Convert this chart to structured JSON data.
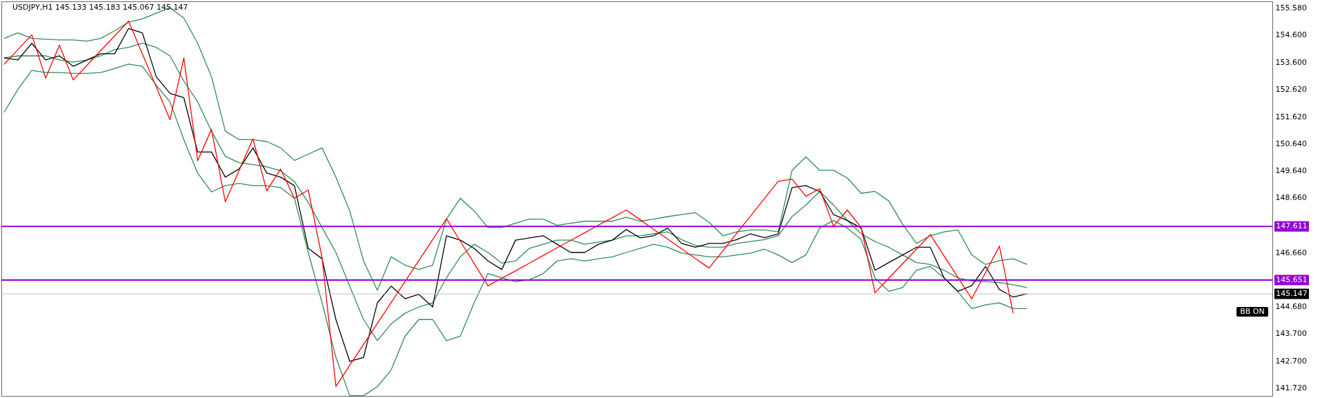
{
  "chart_data": {
    "type": "line",
    "title": "USDJPY,H1  145.133 145.183 145.067 145.147",
    "categories": [
      null,
      null,
      null,
      null,
      null,
      null,
      null,
      null,
      null,
      null,
      null,
      null,
      null,
      null,
      null,
      null,
      null,
      null,
      null,
      null,
      null,
      null,
      null,
      null,
      null,
      null,
      null,
      null,
      null,
      null,
      null,
      null,
      null,
      null,
      null,
      null,
      null,
      null,
      null,
      null,
      null,
      null,
      null,
      null,
      null,
      null,
      null,
      null,
      null,
      null,
      null,
      null,
      null,
      null,
      null,
      null,
      null,
      null,
      null,
      null,
      null,
      null,
      null,
      null,
      null,
      null,
      null,
      null,
      null,
      null,
      null,
      null,
      null,
      null,
      null
    ],
    "series": [
      {
        "color": "#2e8b57",
        "values": [
          154.48,
          154.68,
          154.48,
          154.45,
          154.42,
          154.42,
          154.38,
          154.48,
          154.76,
          155.07,
          155.19,
          155.4,
          155.6,
          155.22,
          154.3,
          153.08,
          151.09,
          150.78,
          150.78,
          150.71,
          150.48,
          150.02,
          150.25,
          150.48,
          149.41,
          148.18,
          146.35,
          145.28,
          146.5,
          146.2,
          146.04,
          146.2,
          147.88,
          148.64,
          148.18,
          147.57,
          147.57,
          147.73,
          147.88,
          147.88,
          147.65,
          147.73,
          147.8,
          147.8,
          147.8,
          147.95,
          147.8,
          147.88,
          147.97,
          148.04,
          148.11,
          147.76,
          147.27,
          147.41,
          147.48,
          147.48,
          147.41,
          149.66,
          150.15,
          149.66,
          149.66,
          149.38,
          148.82,
          148.89,
          148.54,
          147.69,
          146.99,
          147.27,
          147.41,
          147.48,
          146.57,
          146.22,
          146.36,
          146.43,
          146.22
        ]
      },
      {
        "color": "#2e8b57",
        "values": [
          153.77,
          153.84,
          153.84,
          153.84,
          153.69,
          153.61,
          153.69,
          153.84,
          154.07,
          154.15,
          154.3,
          154.15,
          153.84,
          152.92,
          152.16,
          151.09,
          150.17,
          149.94,
          149.87,
          149.79,
          149.64,
          149.25,
          148.49,
          147.57,
          146.66,
          145.43,
          144.21,
          143.44,
          144.05,
          144.44,
          144.67,
          144.82,
          145.74,
          146.5,
          146.96,
          146.66,
          146.27,
          146.35,
          146.81,
          146.96,
          147.11,
          147.11,
          146.96,
          147.04,
          147.11,
          147.27,
          147.27,
          147.34,
          147.41,
          147.13,
          146.92,
          146.85,
          146.85,
          146.99,
          147.06,
          147.13,
          147.27,
          147.97,
          148.39,
          148.89,
          148.39,
          147.83,
          147.34,
          147.06,
          146.85,
          146.57,
          146.29,
          146.22,
          146.01,
          145.73,
          145.62,
          145.59,
          145.56,
          145.48,
          145.38
        ]
      },
      {
        "color": "#2e8b57",
        "values": [
          151.78,
          152.62,
          153.31,
          153.23,
          153.23,
          153.2,
          153.2,
          153.23,
          153.38,
          153.54,
          153.46,
          152.77,
          152.16,
          150.78,
          149.56,
          148.87,
          149.1,
          149.18,
          149.1,
          149.1,
          149.03,
          148.64,
          146.66,
          144.82,
          142.83,
          141.43,
          141.43,
          141.76,
          142.37,
          143.6,
          144.21,
          144.21,
          143.44,
          143.6,
          144.82,
          145.89,
          145.74,
          145.59,
          145.66,
          145.89,
          146.35,
          146.43,
          146.35,
          146.43,
          146.5,
          146.66,
          146.81,
          146.96,
          146.85,
          146.64,
          146.57,
          146.5,
          146.5,
          146.57,
          146.64,
          146.78,
          146.57,
          146.29,
          146.57,
          147.55,
          147.83,
          147.55,
          147.13,
          145.73,
          145.24,
          145.38,
          146.01,
          146.15,
          145.73,
          145.22,
          144.61,
          144.75,
          144.82,
          144.61,
          144.61
        ]
      },
      {
        "color": "#000000",
        "values": [
          153.77,
          153.69,
          154.3,
          153.69,
          153.84,
          153.46,
          153.69,
          153.92,
          153.92,
          154.84,
          154.68,
          153.08,
          152.47,
          152.31,
          150.33,
          150.33,
          149.41,
          149.71,
          150.48,
          149.56,
          149.41,
          149.1,
          146.81,
          146.43,
          144.21,
          142.68,
          142.83,
          144.82,
          145.43,
          144.97,
          145.13,
          144.67,
          147.27,
          147.11,
          146.81,
          146.35,
          146.04,
          147.11,
          147.19,
          147.27,
          146.96,
          146.66,
          146.66,
          146.96,
          147.11,
          147.5,
          147.19,
          147.27,
          147.55,
          146.99,
          146.85,
          146.99,
          146.99,
          147.13,
          147.34,
          147.2,
          147.34,
          149.03,
          149.1,
          148.89,
          148.04,
          147.83,
          147.55,
          146.01,
          146.29,
          146.57,
          146.85,
          146.85,
          145.73,
          145.24,
          145.45,
          146.15,
          145.31,
          145.03,
          145.15
        ]
      },
      {
        "color": "#ff0000",
        "values": [
          153.53,
          154.07,
          154.61,
          153.03,
          154.23,
          152.96,
          153.5,
          154.04,
          154.57,
          155.11,
          153.91,
          152.71,
          151.51,
          153.76,
          150.01,
          151.16,
          148.51,
          149.66,
          150.81,
          148.91,
          149.71,
          148.64,
          148.94,
          146.47,
          141.77,
          142.54,
          143.3,
          144.07,
          144.83,
          145.6,
          146.36,
          147.13,
          147.89,
          147.07,
          146.26,
          145.44,
          145.72,
          145.99,
          146.27,
          146.55,
          146.83,
          147.1,
          147.38,
          147.66,
          147.93,
          148.21,
          147.86,
          147.5,
          147.15,
          146.8,
          146.44,
          146.09,
          146.72,
          147.36,
          147.99,
          148.63,
          149.26,
          149.34,
          148.71,
          148.99,
          147.62,
          148.21,
          147.57,
          145.19,
          145.72,
          146.25,
          146.78,
          147.31,
          146.53,
          145.75,
          144.97,
          145.93,
          146.89,
          144.44,
          null
        ]
      }
    ],
    "ylim": [
      141.42,
      155.83
    ],
    "yticks": [
      {
        "value": 141.72,
        "label": "141.720"
      },
      {
        "value": 142.7,
        "label": "142.700"
      },
      {
        "value": 143.7,
        "label": "143.700"
      },
      {
        "value": 144.68,
        "label": "144.680"
      },
      {
        "value": 146.66,
        "label": "146.660"
      },
      {
        "value": 148.66,
        "label": "148.660"
      },
      {
        "value": 149.64,
        "label": "149.640"
      },
      {
        "value": 150.64,
        "label": "150.640"
      },
      {
        "value": 151.62,
        "label": "151.620"
      },
      {
        "value": 152.62,
        "label": "152.620"
      },
      {
        "value": 153.6,
        "label": "153.600"
      },
      {
        "value": 154.6,
        "label": "154.600"
      },
      {
        "value": 155.58,
        "label": "155.580"
      }
    ],
    "tick_labels": "y",
    "ref_lines": [
      {
        "axis": "y",
        "value": 147.611,
        "label": "147.611",
        "color": "#9400d3"
      },
      {
        "axis": "y",
        "value": 145.651,
        "label": "145.651",
        "color": "#9400d3"
      },
      {
        "axis": "y",
        "value": 145.147,
        "label": "145.147",
        "color": "#c0c0c0"
      }
    ],
    "annotations": [
      "BB ON"
    ]
  }
}
